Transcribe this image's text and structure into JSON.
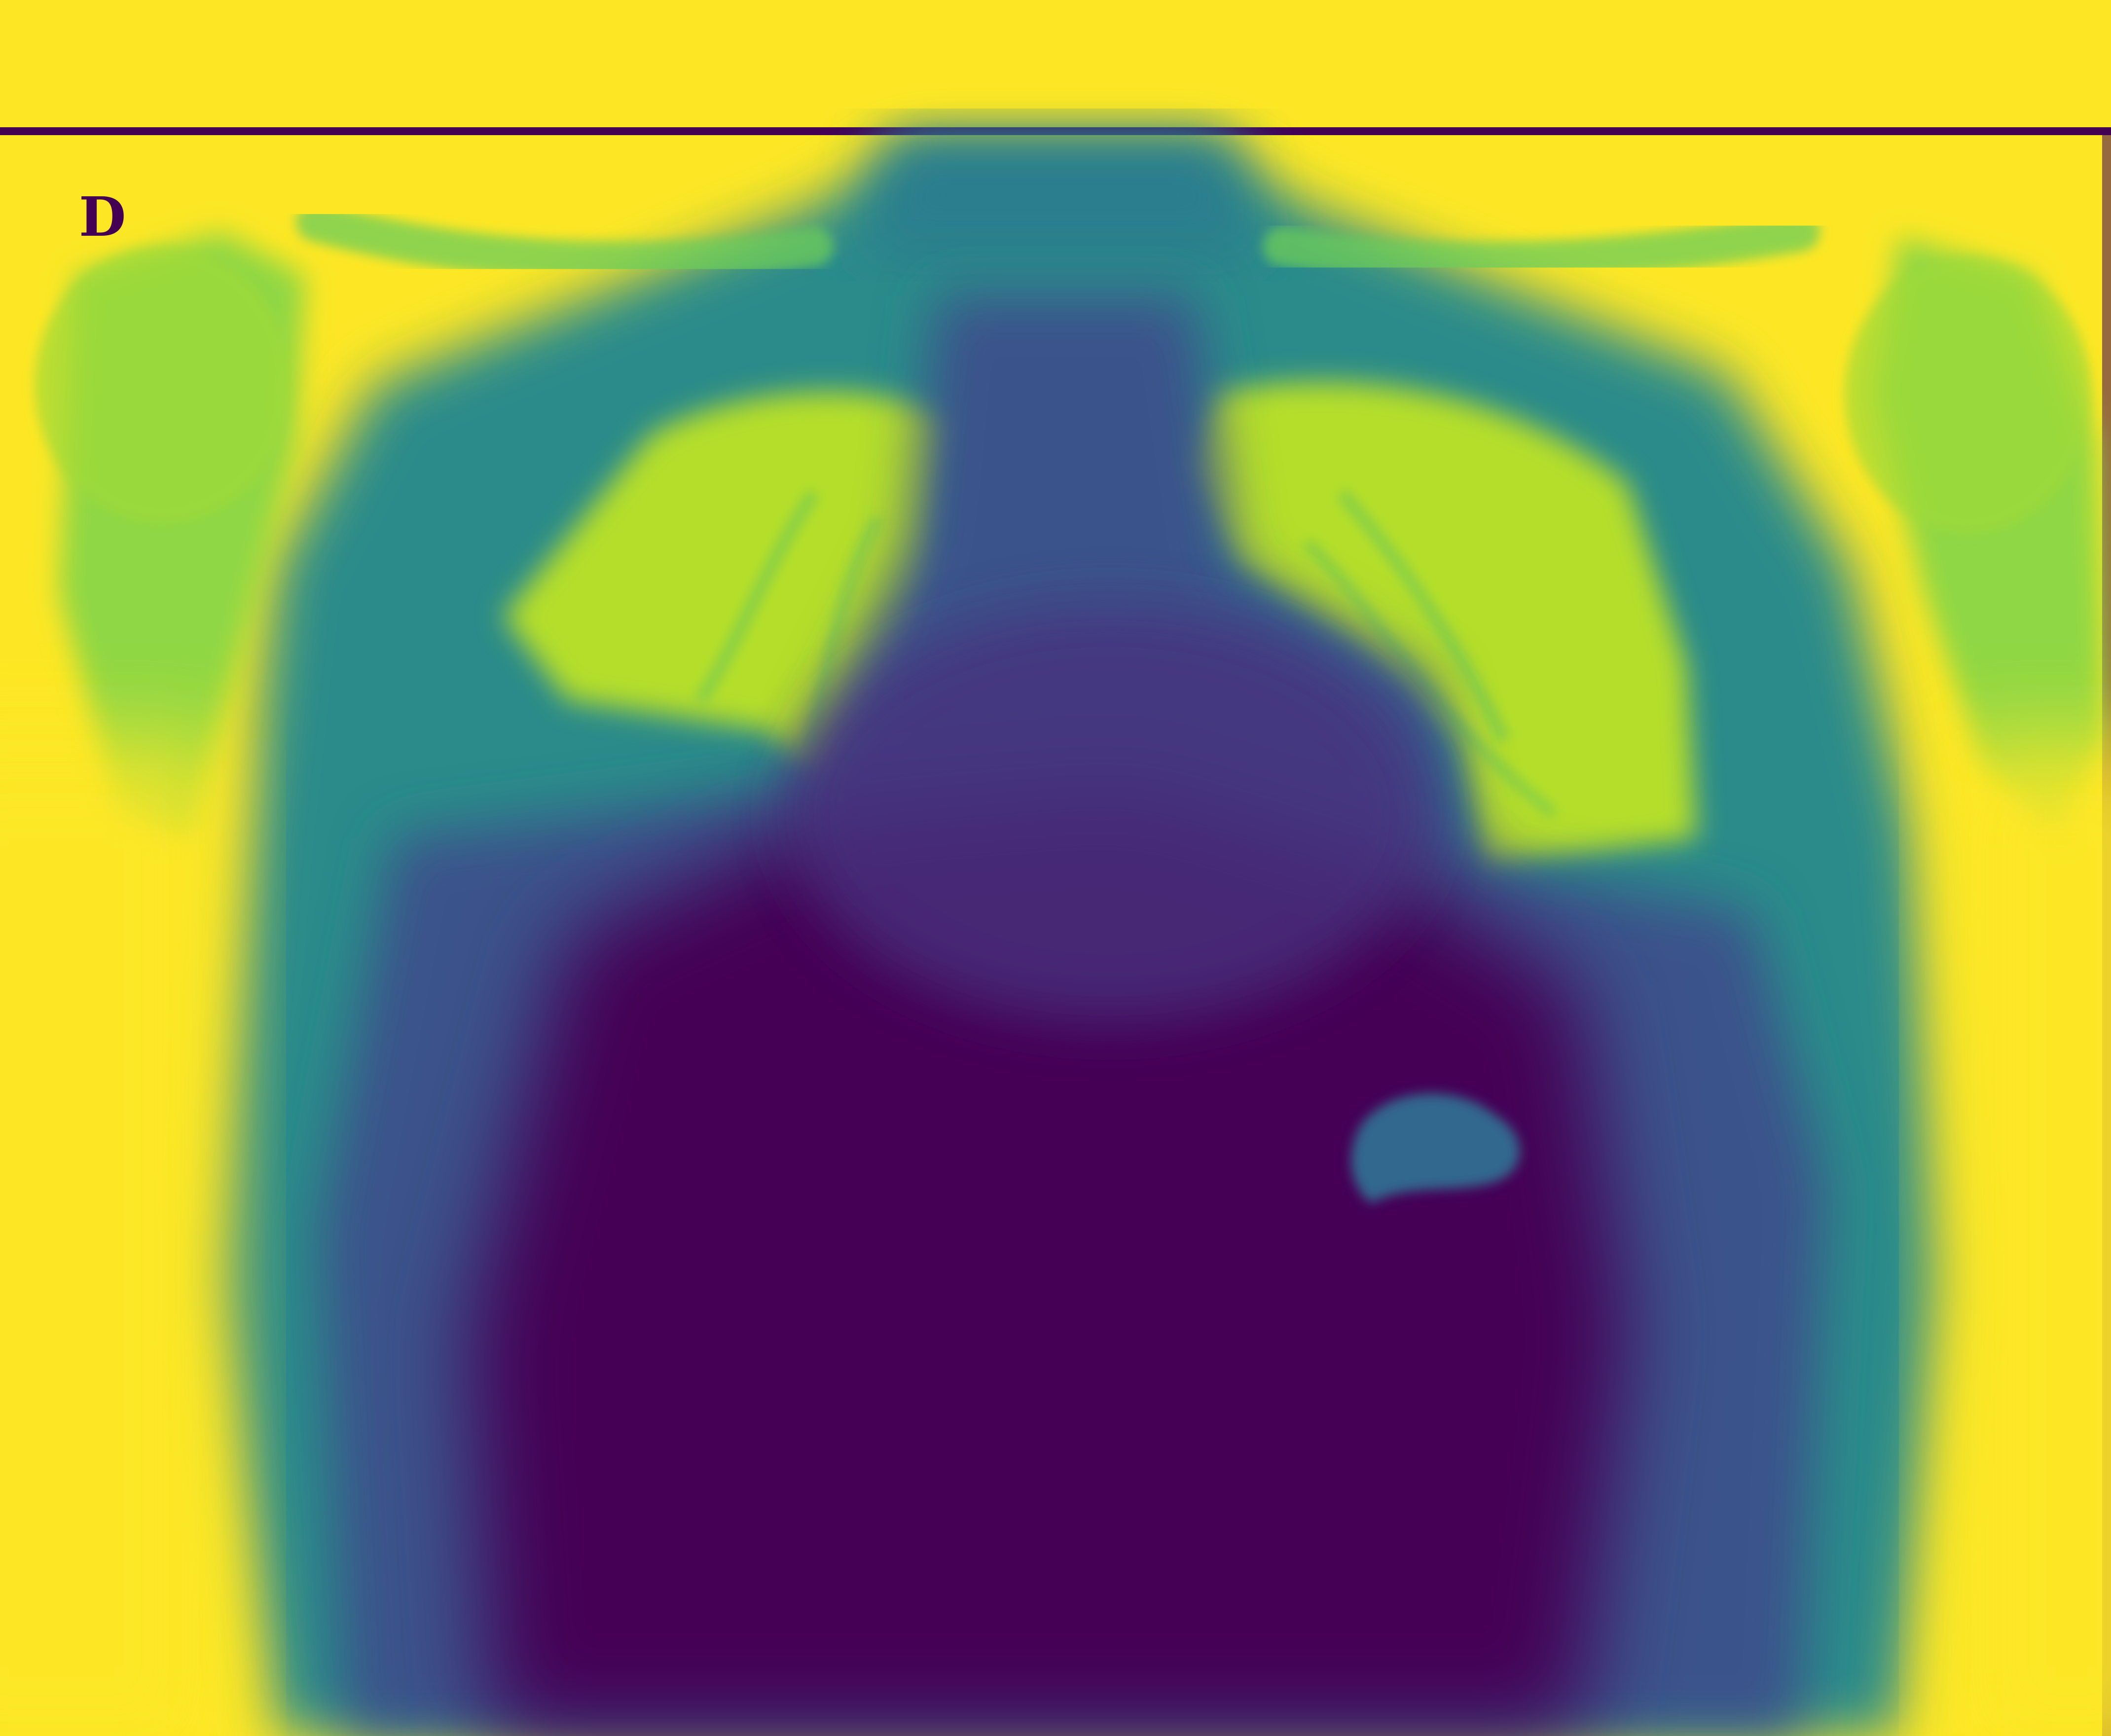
{
  "image": {
    "kind": "chest radiograph, frontal view, viridis colormap",
    "laterality_marker": "D",
    "colors": {
      "background": "#fde725",
      "frame": "#440154",
      "soft_tissue": "#21918c",
      "dense": "#440154",
      "mid": "#3b528b",
      "lung": "#b5de2b",
      "bone": "#a0da39"
    }
  }
}
